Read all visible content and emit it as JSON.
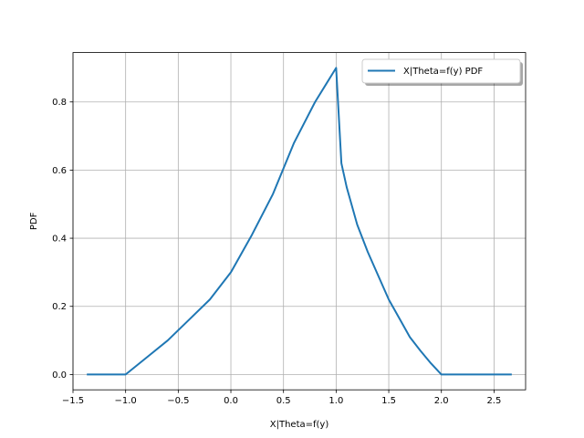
{
  "chart_data": {
    "type": "line",
    "title": "",
    "xlabel": "X|Theta=f(y)",
    "ylabel": "PDF",
    "xlim": [
      -1.5,
      2.8
    ],
    "ylim": [
      -0.045,
      0.945
    ],
    "xticks": [
      -1.5,
      -1.0,
      -0.5,
      0.0,
      0.5,
      1.0,
      1.5,
      2.0,
      2.5
    ],
    "xtick_labels": [
      "−1.5",
      "−1.0",
      "−0.5",
      "0.0",
      "0.5",
      "1.0",
      "1.5",
      "2.0",
      "2.5"
    ],
    "yticks": [
      0.0,
      0.2,
      0.4,
      0.6,
      0.8
    ],
    "ytick_labels": [
      "0.0",
      "0.2",
      "0.4",
      "0.6",
      "0.8"
    ],
    "grid": true,
    "legend_position": "top-right",
    "series": [
      {
        "name": "X|Theta=f(y) PDF",
        "color": "#1f77b4",
        "x": [
          -1.36,
          -1.2,
          -1.0,
          -0.8,
          -0.6,
          -0.4,
          -0.2,
          0.0,
          0.2,
          0.4,
          0.6,
          0.8,
          0.9,
          1.0,
          1.05,
          1.1,
          1.2,
          1.3,
          1.4,
          1.5,
          1.6,
          1.7,
          1.8,
          1.9,
          2.0,
          2.2,
          2.4,
          2.66
        ],
        "values": [
          0.0,
          0.0,
          0.0,
          0.05,
          0.1,
          0.16,
          0.22,
          0.3,
          0.41,
          0.53,
          0.68,
          0.8,
          0.85,
          0.9,
          0.62,
          0.55,
          0.44,
          0.36,
          0.29,
          0.22,
          0.165,
          0.11,
          0.07,
          0.033,
          0.0,
          0.0,
          0.0,
          0.0
        ]
      }
    ]
  }
}
